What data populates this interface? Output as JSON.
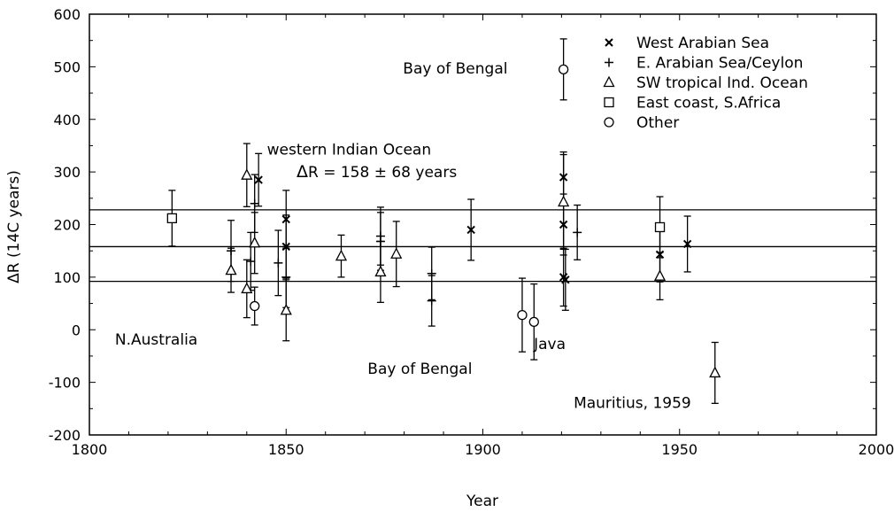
{
  "chart_data": {
    "type": "scatter",
    "xlabel": "Year",
    "ylabel": "ΔR (14C years)",
    "xlim": [
      1800,
      2000
    ],
    "ylim": [
      -200,
      600
    ],
    "xticks": [
      1800,
      1850,
      1900,
      1950,
      2000
    ],
    "yticks": [
      -200,
      -100,
      0,
      100,
      200,
      300,
      400,
      500,
      600
    ],
    "grid": false,
    "legend_position": "top-right",
    "reference_lines": [
      {
        "y": 228
      },
      {
        "y": 158
      },
      {
        "y": 92
      }
    ],
    "series": [
      {
        "name": "West Arabian Sea",
        "marker": "x",
        "points": [
          {
            "x": 1843,
            "y": 285,
            "err": 50
          },
          {
            "x": 1850,
            "y": 210,
            "err": 55
          },
          {
            "x": 1850,
            "y": 158,
            "err": 60
          },
          {
            "x": 1897,
            "y": 190,
            "err": 58
          },
          {
            "x": 1920.5,
            "y": 290,
            "err": 48
          },
          {
            "x": 1920.5,
            "y": 200,
            "err": 58
          },
          {
            "x": 1920.5,
            "y": 100,
            "err": 55
          },
          {
            "x": 1921,
            "y": 95,
            "err": 58
          },
          {
            "x": 1945,
            "y": 143,
            "err": 52
          },
          {
            "x": 1952,
            "y": 163,
            "err": 53
          }
        ]
      },
      {
        "name": "E. Arabian Sea/Ceylon",
        "marker": "plus",
        "points": [
          {
            "x": 1836,
            "y": 150,
            "err": 58
          },
          {
            "x": 1841,
            "y": 130,
            "err": 55
          },
          {
            "x": 1842,
            "y": 240,
            "err": 55
          },
          {
            "x": 1848,
            "y": 127,
            "err": 62
          },
          {
            "x": 1850,
            "y": 100,
            "err": 58
          },
          {
            "x": 1874,
            "y": 178,
            "err": 55
          },
          {
            "x": 1874,
            "y": 168,
            "err": 55
          },
          {
            "x": 1887,
            "y": 107,
            "err": 50
          },
          {
            "x": 1887,
            "y": 55,
            "err": 48
          },
          {
            "x": 1924,
            "y": 185,
            "err": 52
          }
        ]
      },
      {
        "name": "SW tropical Ind. Ocean",
        "marker": "triangle",
        "points": [
          {
            "x": 1836,
            "y": 113,
            "err": 42
          },
          {
            "x": 1840,
            "y": 294,
            "err": 60
          },
          {
            "x": 1840,
            "y": 78,
            "err": 55
          },
          {
            "x": 1842,
            "y": 165,
            "err": 58
          },
          {
            "x": 1850,
            "y": 37,
            "err": 58
          },
          {
            "x": 1864,
            "y": 140,
            "err": 40
          },
          {
            "x": 1874,
            "y": 110,
            "err": 58
          },
          {
            "x": 1878,
            "y": 144,
            "err": 62
          },
          {
            "x": 1920.5,
            "y": 243,
            "err": 90
          },
          {
            "x": 1945,
            "y": 102,
            "err": 45
          },
          {
            "x": 1959,
            "y": -82,
            "err": 58
          }
        ]
      },
      {
        "name": "East coast, S.Africa",
        "marker": "square",
        "points": [
          {
            "x": 1821,
            "y": 212,
            "err": 53
          },
          {
            "x": 1945,
            "y": 195,
            "err": 58
          }
        ]
      },
      {
        "name": "Other",
        "marker": "circle",
        "points": [
          {
            "x": 1842,
            "y": 45,
            "err": 36
          },
          {
            "x": 1910,
            "y": 28,
            "err": 70
          },
          {
            "x": 1913,
            "y": 15,
            "err": 72
          },
          {
            "x": 1920.5,
            "y": 495,
            "err": 58
          }
        ]
      }
    ],
    "annotations": [
      {
        "text": "Bay of Bengal",
        "x": 1893,
        "y": 487
      },
      {
        "text": "western Indian Ocean",
        "x": 1866,
        "y": 333
      },
      {
        "text": "= 158 ± 68 years",
        "x": 1870,
        "y": 290
      },
      {
        "text": "N.Australia",
        "x": 1817,
        "y": -28
      },
      {
        "text": "Bay of Bengal",
        "x": 1884,
        "y": -84
      },
      {
        "text": "Java",
        "x": 1917,
        "y": -37
      },
      {
        "text": "Mauritius, 1959",
        "x": 1938,
        "y": -149
      }
    ],
    "annotation_symbol": "Δ",
    "annotation_symbol_suffix": "R"
  }
}
